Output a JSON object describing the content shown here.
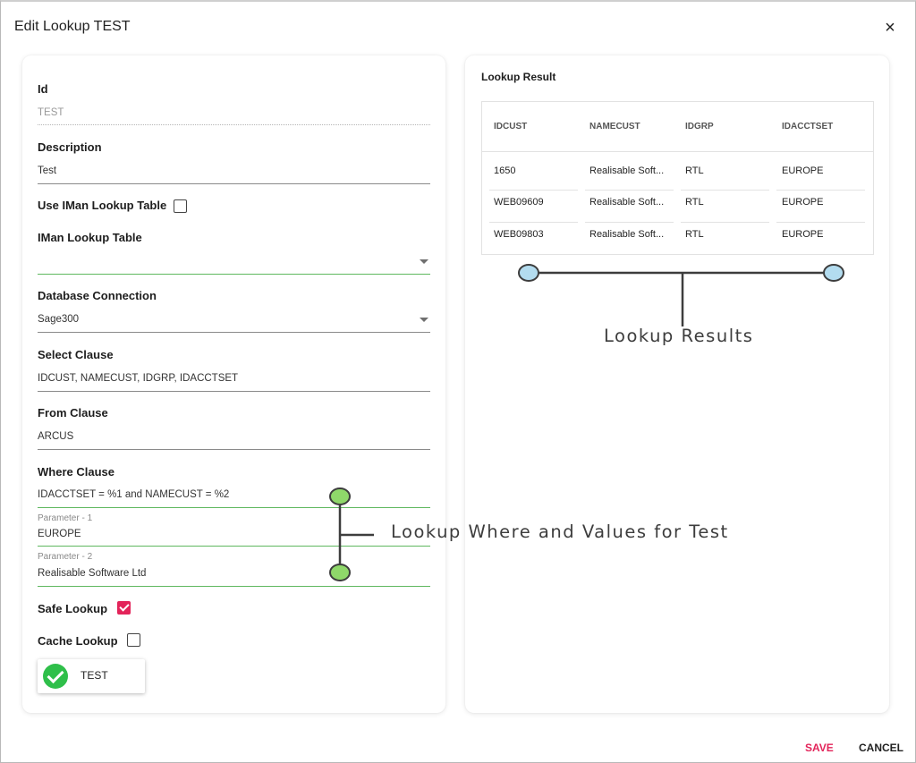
{
  "dialog": {
    "title": "Edit Lookup TEST",
    "close_icon": "×"
  },
  "form": {
    "id": {
      "label": "Id",
      "value": "TEST"
    },
    "description": {
      "label": "Description",
      "value": "Test"
    },
    "use_iman_lookup_table": {
      "label": "Use IMan Lookup Table",
      "checked": false
    },
    "iman_lookup_table": {
      "label": "IMan Lookup Table",
      "value": ""
    },
    "database_connection": {
      "label": "Database Connection",
      "value": "Sage300"
    },
    "select_clause": {
      "label": "Select Clause",
      "value": "IDCUST, NAMECUST, IDGRP, IDACCTSET"
    },
    "from_clause": {
      "label": "From Clause",
      "value": "ARCUS"
    },
    "where_clause": {
      "label": "Where Clause",
      "value": "IDACCTSET = %1 and NAMECUST = %2"
    },
    "parameter_1": {
      "label": "Parameter - 1",
      "value": "EUROPE"
    },
    "parameter_2": {
      "label": "Parameter - 2",
      "value": "Realisable Software Ltd"
    },
    "safe_lookup": {
      "label": "Safe Lookup",
      "checked": true
    },
    "cache_lookup": {
      "label": "Cache Lookup",
      "checked": false
    },
    "test_button": {
      "label": "TEST",
      "icon": "check-circle-icon"
    }
  },
  "lookup_result": {
    "title": "Lookup Result",
    "columns": [
      "IDCUST",
      "NAMECUST",
      "IDGRP",
      "IDACCTSET"
    ],
    "rows": [
      [
        "1650",
        "Realisable Soft...",
        "RTL",
        "EUROPE"
      ],
      [
        "WEB09609",
        "Realisable Soft...",
        "RTL",
        "EUROPE"
      ],
      [
        "WEB09803",
        "Realisable Soft...",
        "RTL",
        "EUROPE"
      ]
    ]
  },
  "annotations": {
    "lookup_results": "Lookup Results",
    "lookup_where": "Lookup Where and Values for Test",
    "node_green": "#8fd86a",
    "node_blue": "#b3dcef"
  },
  "footer": {
    "save_label": "SAVE",
    "cancel_label": "CANCEL"
  },
  "colors": {
    "accent": "#e3245a",
    "field_active_underline": "#5fb85f",
    "test_icon": "#2fbf4a"
  }
}
